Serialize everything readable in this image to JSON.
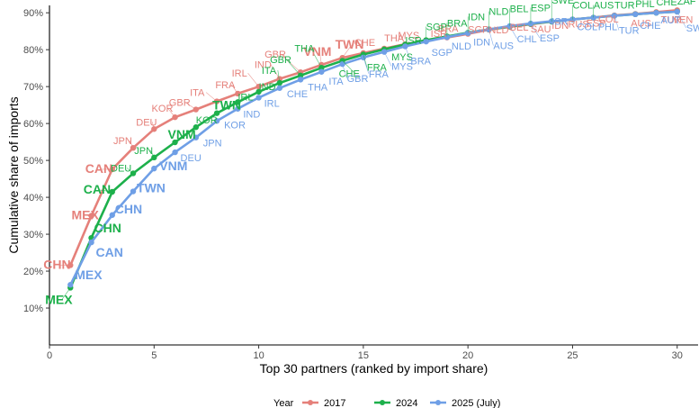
{
  "chart_data": {
    "type": "line",
    "xlabel": "Top 30 partners (ranked by import share)",
    "ylabel": "Cumulative share of imports",
    "xlim": [
      0,
      31
    ],
    "ylim": [
      0,
      92
    ],
    "x_ticks": [
      0,
      5,
      10,
      15,
      20,
      25,
      30
    ],
    "y_ticks": [
      10,
      20,
      30,
      40,
      50,
      60,
      70,
      80,
      90
    ],
    "y_tick_suffix": "%",
    "grid": false,
    "legend": {
      "title": "Year",
      "placement": "bottom",
      "entries": [
        "2017",
        "2024",
        "2025 (July)"
      ]
    },
    "series": [
      {
        "name": "2017",
        "color": "#e5807a",
        "x": [
          1,
          2,
          3,
          4,
          5,
          6,
          7,
          8,
          9,
          10,
          11,
          12,
          13,
          14,
          15,
          16,
          17,
          18,
          19,
          20,
          21,
          22,
          23,
          24,
          25,
          26,
          27,
          28,
          29,
          30
        ],
        "values": [
          21.6,
          35.0,
          47.6,
          53.4,
          58.5,
          61.7,
          63.8,
          66.0,
          68.1,
          70.0,
          72.1,
          73.9,
          75.9,
          77.8,
          79.1,
          80.3,
          81.5,
          82.5,
          83.3,
          84.3,
          85.4,
          86.2,
          86.9,
          87.6,
          88.2,
          88.7,
          89.3,
          89.7,
          90.2,
          90.7
        ],
        "labels": [
          "CHN",
          "MEX",
          "CAN",
          "JPN",
          "DEU",
          "KOR",
          "GBR",
          "ITA",
          "FRA",
          "IRL",
          "IND",
          "GBR",
          "VNM",
          "TWN",
          "CHE",
          "THA",
          "MYS",
          "ISR",
          "BRA",
          "SGP",
          "NLD",
          "BEL",
          "SAU",
          "IDN",
          "RUS",
          "ESP",
          "COL",
          "AUS",
          "TUR",
          "VEN"
        ]
      },
      {
        "name": "2024",
        "color": "#1db04b",
        "x": [
          1,
          2,
          3,
          4,
          5,
          6,
          7,
          8,
          9,
          10,
          11,
          12,
          13,
          14,
          15,
          16,
          17,
          18,
          19,
          20,
          21,
          22,
          23,
          24,
          25,
          26,
          27,
          28,
          29,
          30
        ],
        "values": [
          15.5,
          29.0,
          41.5,
          46.5,
          50.8,
          54.9,
          59.0,
          62.8,
          65.8,
          68.6,
          71.0,
          73.0,
          75.1,
          77.0,
          78.7,
          80.1,
          81.4,
          82.6,
          83.6,
          84.6,
          85.5,
          86.3,
          87.0,
          87.6,
          88.2,
          88.7,
          89.2,
          89.6,
          90.0,
          90.3
        ],
        "labels": [
          "MEX",
          "CHN",
          "CAN",
          "DEU",
          "JPN",
          "VNM",
          "KOR",
          "TWN",
          "IRL",
          "IND",
          "ITA",
          "GBR",
          "THA",
          "CHE",
          "FRA",
          "MYS",
          "ISR",
          "SGP",
          "BRA",
          "IDN",
          "NLD",
          "BEL",
          "ESP",
          "SWE",
          "COL",
          "AUS",
          "TUR",
          "PHL",
          "CHE",
          "ZAF"
        ]
      },
      {
        "name": "2025 (July)",
        "color": "#6f9fe6",
        "x": [
          1,
          2,
          3,
          4,
          5,
          6,
          7,
          8,
          9,
          10,
          11,
          12,
          13,
          14,
          15,
          16,
          17,
          18,
          19,
          20,
          21,
          22,
          23,
          24,
          25,
          26,
          27,
          28,
          29,
          30
        ],
        "values": [
          16.3,
          27.8,
          35.2,
          41.6,
          47.8,
          52.2,
          56.2,
          60.7,
          64.0,
          67.0,
          69.6,
          71.9,
          74.0,
          76.1,
          77.9,
          79.4,
          80.9,
          82.2,
          83.4,
          84.5,
          85.5,
          86.4,
          87.1,
          87.7,
          88.2,
          88.7,
          89.2,
          89.6,
          90.0,
          90.3
        ],
        "labels": [
          "MEX",
          "CAN",
          "CHN",
          "TWN",
          "VNM",
          "DEU",
          "JPN",
          "KOR",
          "IND",
          "IRL",
          "CHE",
          "THA",
          "ITA",
          "GBR",
          "FRA",
          "MYS",
          "BRA",
          "SGP",
          "NLD",
          "IDN",
          "AUS",
          "CHL",
          "ESP",
          "ISR",
          "COL",
          "PHL",
          "TUR",
          "CHE",
          "AUT",
          "SWE"
        ]
      }
    ]
  }
}
